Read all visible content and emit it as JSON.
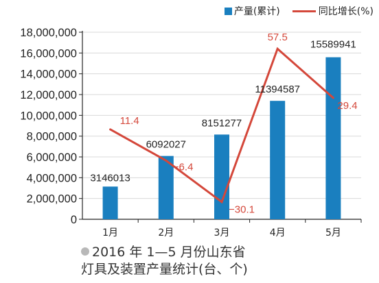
{
  "legend": {
    "bar_label": "产量(累计)",
    "line_label": "同比增长(%)"
  },
  "caption": {
    "line1": "2016 年 1—5 月份山东省",
    "line2": "灯具及装置产量统计(台、个)"
  },
  "colors": {
    "bar": "#1a7fbf",
    "line": "#d4473a",
    "axis": "#222222",
    "grid": "#d8d8d8"
  },
  "chart_data": {
    "type": "bar",
    "categories": [
      "1月",
      "2月",
      "3月",
      "4月",
      "5月"
    ],
    "series": [
      {
        "name": "产量(累计)",
        "type": "bar",
        "axis": "left",
        "values": [
          3146013,
          6092027,
          8151277,
          11394587,
          15589941
        ],
        "labels": [
          "3146013",
          "6092027",
          "8151277",
          "11394587",
          "15589941"
        ]
      },
      {
        "name": "同比增长(%)",
        "type": "line",
        "axis": "secondary",
        "values": [
          11.4,
          -6.4,
          -30.1,
          57.5,
          29.4
        ],
        "labels": [
          "11.4",
          "−6.4",
          "−30.1",
          "57.5",
          "29.4"
        ]
      }
    ],
    "y_ticks": [
      "0",
      "2,000,000",
      "4,000,000",
      "6,000,000",
      "8,000,000",
      "10,000,000",
      "12,000,000",
      "14,000,000",
      "16,000,000",
      "18,000,000"
    ],
    "ylim": [
      0,
      18000000
    ],
    "y2lim": [
      -40,
      67
    ],
    "grid": true,
    "legend_position": "top-right"
  }
}
